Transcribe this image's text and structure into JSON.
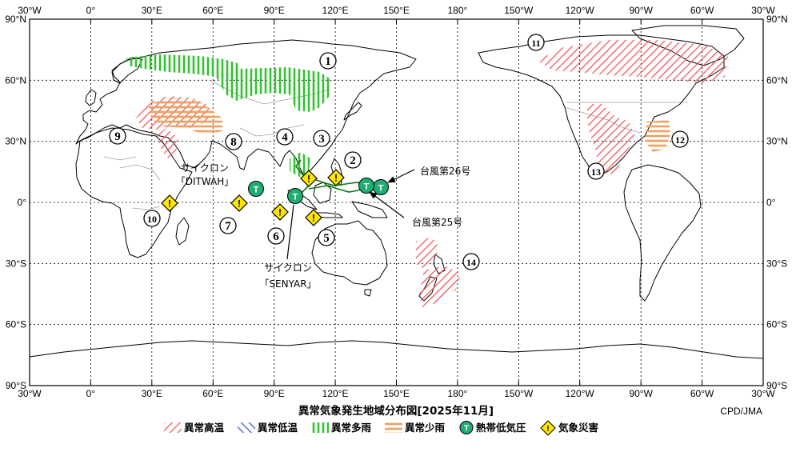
{
  "map": {
    "title": "異常気象発生地域分布図[2025年11月]",
    "source": "CPD/JMA",
    "lon_labels": [
      "30°W",
      "0°",
      "30°E",
      "60°E",
      "90°E",
      "120°E",
      "150°E",
      "180°",
      "150°W",
      "120°W",
      "90°W",
      "60°W",
      "30°W"
    ],
    "lat_labels": [
      "90°N",
      "60°N",
      "30°N",
      "0°",
      "30°S",
      "60°S",
      "90°S"
    ],
    "extent": {
      "lon_min": -30,
      "lon_max": 330,
      "lat_min": -90,
      "lat_max": 90
    }
  },
  "colors": {
    "warm": "#f05a5a",
    "cold": "#3a5bd9",
    "wet": "#33c233",
    "dry": "#f0a060",
    "cyclone": "#1fae74",
    "disaster": "#ffe600",
    "coast": "#000000",
    "border": "#777777"
  },
  "regions": [
    {
      "id": "1",
      "label": "①"
    },
    {
      "id": "2",
      "label": "②"
    },
    {
      "id": "3",
      "label": "③"
    },
    {
      "id": "4",
      "label": "④"
    },
    {
      "id": "5",
      "label": "⑤"
    },
    {
      "id": "6",
      "label": "⑥"
    },
    {
      "id": "7",
      "label": "⑦"
    },
    {
      "id": "8",
      "label": "⑧"
    },
    {
      "id": "9",
      "label": "⑨"
    },
    {
      "id": "10",
      "label": "⑩"
    },
    {
      "id": "11",
      "label": "⑪"
    },
    {
      "id": "12",
      "label": "⑫"
    },
    {
      "id": "13",
      "label": "⑬"
    },
    {
      "id": "14",
      "label": "⑭"
    }
  ],
  "cyclones": [
    {
      "id": "ditwah",
      "line1": "サイクロン",
      "line2": "「DITWAH」",
      "symbol": "T"
    },
    {
      "id": "senyar",
      "line1": "サイクロン",
      "line2": "「SENYAR」",
      "symbol": "T"
    },
    {
      "id": "typhoon26",
      "name": "台風第26号",
      "symbol": "T"
    },
    {
      "id": "typhoon25",
      "name": "台風第25号",
      "symbol": "T"
    }
  ],
  "disaster_symbol": "!",
  "legend": {
    "items": [
      {
        "key": "warm",
        "label": "異常高温"
      },
      {
        "key": "cold",
        "label": "異常低温"
      },
      {
        "key": "wet",
        "label": "異常多雨"
      },
      {
        "key": "dry",
        "label": "異常少雨"
      },
      {
        "key": "cyclone",
        "label": "熱帯低気圧",
        "symbol": "T"
      },
      {
        "key": "disaster",
        "label": "気象災害",
        "symbol": "!"
      }
    ]
  }
}
